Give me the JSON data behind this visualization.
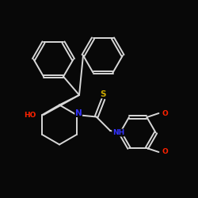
{
  "background_color": "#080808",
  "bond_color": "#d8d8d8",
  "bond_width": 1.4,
  "atom_colors": {
    "N": "#3333ff",
    "O": "#ff2200",
    "S": "#ccaa00",
    "C": "#d8d8d8",
    "H": "#d8d8d8"
  },
  "font_size": 6.5,
  "figsize": [
    2.5,
    2.5
  ],
  "dpi": 100
}
